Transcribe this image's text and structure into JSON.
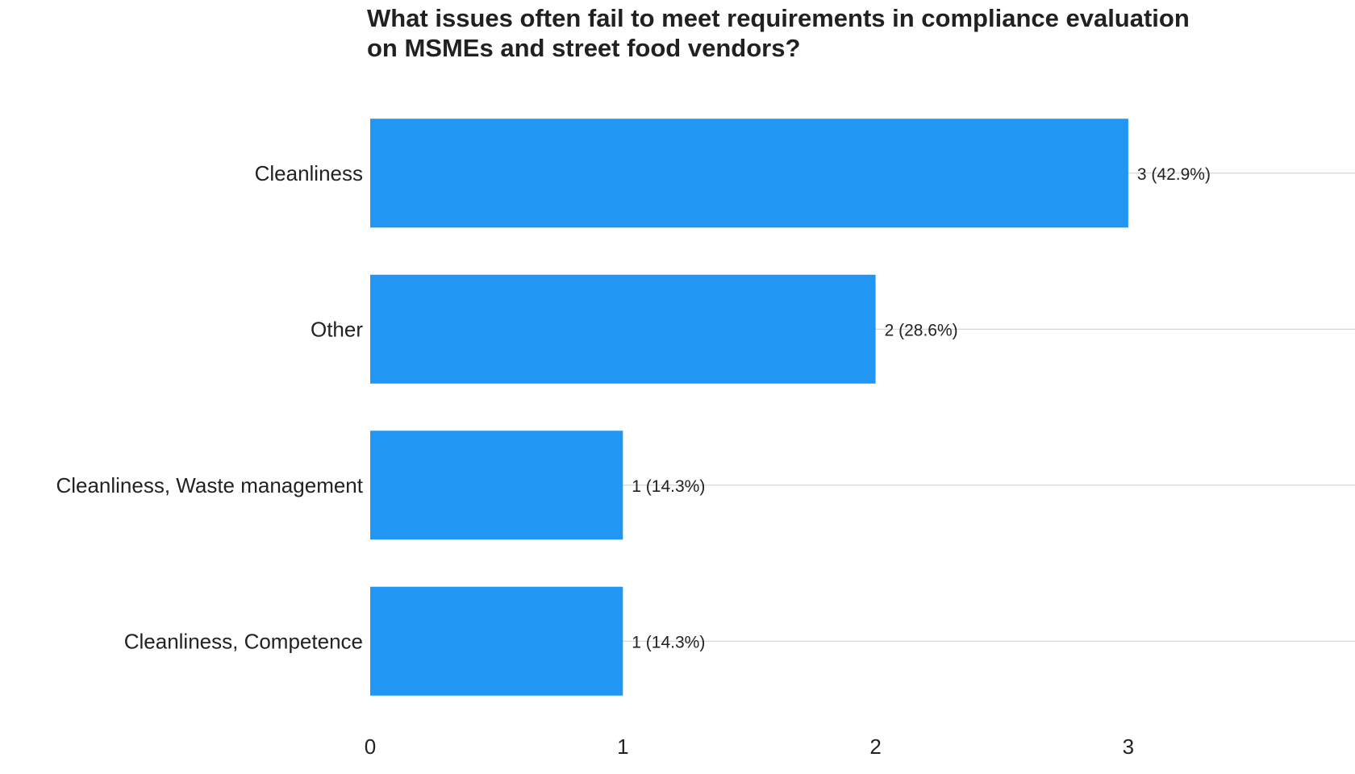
{
  "chart_data": {
    "type": "bar",
    "orientation": "horizontal",
    "title_lines": [
      "What issues often fail to meet requirements in compliance evaluation",
      "on MSMEs and street food vendors?"
    ],
    "categories": [
      "Cleanliness",
      "Other",
      "Cleanliness, Waste management",
      "Cleanliness, Competence"
    ],
    "values": [
      3,
      2,
      1,
      1
    ],
    "data_labels": [
      "3 (42.9%)",
      "2 (28.6%)",
      "1 (14.3%)",
      "1 (14.3%)"
    ],
    "xlim": [
      0,
      3.9
    ],
    "xticks": [
      0,
      1,
      2,
      3
    ],
    "xlabel": "",
    "ylabel": "",
    "grid": true,
    "legend": "none",
    "bar_color": "#2196F3",
    "grid_color": "#cccccc"
  }
}
